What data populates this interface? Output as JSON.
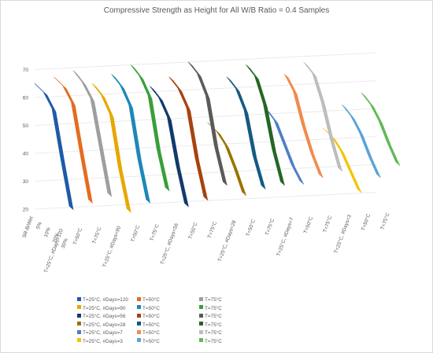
{
  "chart_data": {
    "type": "3d-line",
    "title": "Compressive Strength as Height for All W/B Ratio = 0.4 Samples",
    "ylim": [
      20,
      70
    ],
    "y_ticks": [
      "20",
      "30",
      "40",
      "50",
      "60",
      "70"
    ],
    "x_ticks": [
      "SR-B/Wet",
      "5%",
      "10%",
      "20%",
      "30%"
    ],
    "series_ticks": [
      "T=25°C, #Days=120",
      "T=50°C",
      "T=75°C",
      "T=25°C, #Days=90",
      "T=50°C",
      "T=75°C",
      "T=25°C, #Days=56",
      "T=50°C",
      "T=75°C",
      "T=25°C, #Days=28",
      "T=50°C",
      "T=75°C",
      "T=25°C, #Days=7",
      "T=50°C",
      "T=75°C",
      "T=25°C, #Days=3",
      "T=50°C",
      "T=75°C"
    ],
    "series": [
      {
        "name": "T=25°C, #Days=120",
        "color": "#1e5aa8",
        "values": [
          65,
          64,
          60,
          44,
          29
        ]
      },
      {
        "name": "T=50°C",
        "color": "#e46c1f",
        "values": [
          67,
          66,
          62,
          46,
          31
        ]
      },
      {
        "name": "T=75°C",
        "color": "#9e9e9e",
        "values": [
          69,
          67,
          63,
          48,
          33
        ]
      },
      {
        "name": "T=25°C, #Days=90",
        "color": "#e6a800",
        "values": [
          64,
          62,
          57,
          40,
          27
        ]
      },
      {
        "name": "T=50°C",
        "color": "#1e87b8",
        "values": [
          67,
          65,
          60,
          43,
          30
        ]
      },
      {
        "name": "T=75°C",
        "color": "#3a9e3a",
        "values": [
          70,
          68,
          63,
          46,
          34
        ]
      },
      {
        "name": "T=25°C, #Days=56",
        "color": "#123a6a",
        "values": [
          62,
          60,
          55,
          40,
          28
        ]
      },
      {
        "name": "T=50°C",
        "color": "#a8420f",
        "values": [
          65,
          63,
          58,
          42,
          30
        ]
      },
      {
        "name": "T=75°C",
        "color": "#5a5a5a",
        "values": [
          70,
          68,
          62,
          46,
          35
        ]
      },
      {
        "name": "T=25°C, #Days=28",
        "color": "#9a7300",
        "values": [
          48,
          47,
          44,
          38,
          31
        ]
      },
      {
        "name": "T=50°C",
        "color": "#145a82",
        "values": [
          64,
          62,
          56,
          42,
          33
        ]
      },
      {
        "name": "T=75°C",
        "color": "#246624",
        "values": [
          68,
          66,
          58,
          44,
          34
        ]
      },
      {
        "name": "T=25°C, #Days=7",
        "color": "#4d7fc4",
        "values": [
          52,
          50,
          44,
          38,
          34
        ]
      },
      {
        "name": "T=50°C",
        "color": "#f08b4e",
        "values": [
          64,
          60,
          50,
          42,
          36
        ]
      },
      {
        "name": "T=75°C",
        "color": "#bdbdbd",
        "values": [
          68,
          66,
          58,
          47,
          38
        ]
      },
      {
        "name": "T=25°C, #Days=3",
        "color": "#f5c400",
        "values": [
          44,
          43,
          40,
          35,
          30
        ]
      },
      {
        "name": "T=50°C",
        "color": "#5aa3d6",
        "values": [
          52,
          50,
          46,
          40,
          35
        ]
      },
      {
        "name": "T=75°C",
        "color": "#63b85a",
        "values": [
          56,
          54,
          50,
          44,
          39
        ]
      }
    ],
    "legend_position": "bottom"
  }
}
